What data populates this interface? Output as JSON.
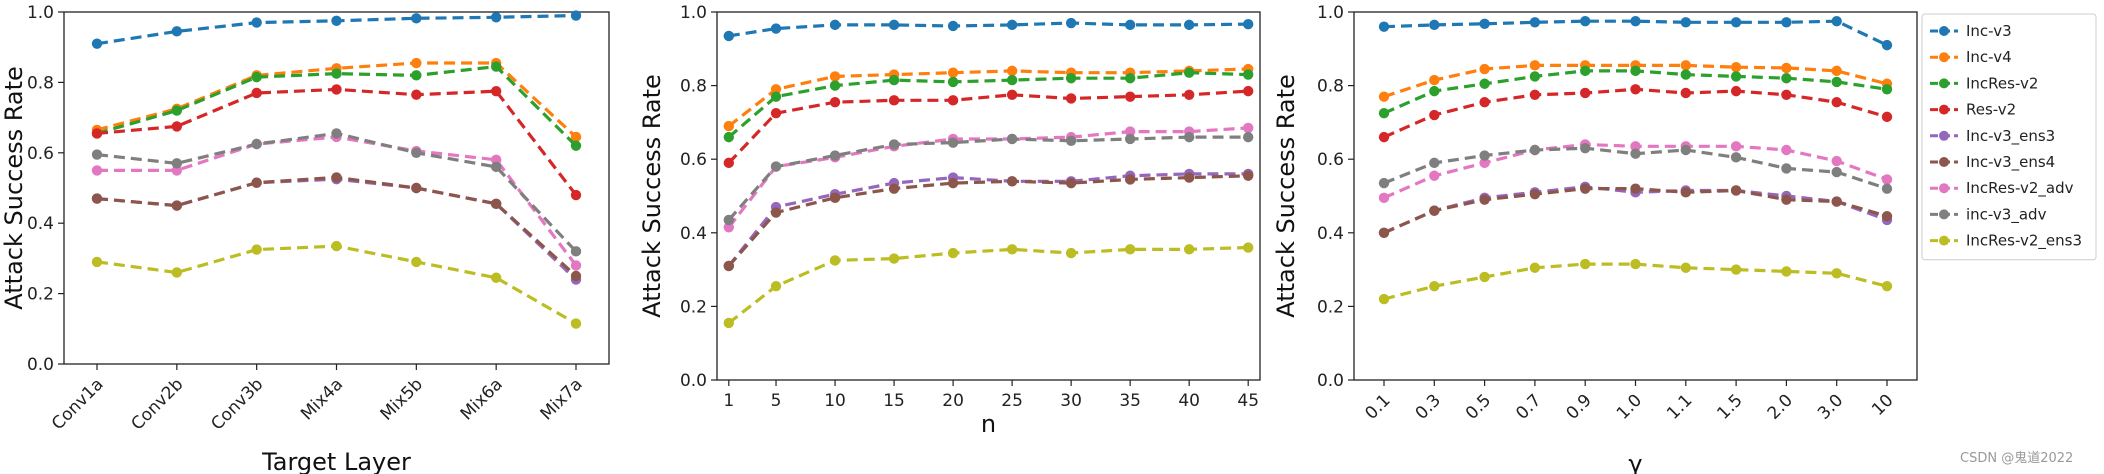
{
  "colors": {
    "Inc-v3": "#1f77b4",
    "Inc-v4": "#ff7f0e",
    "IncRes-v2": "#2ca02c",
    "Res-v2": "#d62728",
    "Inc-v3_ens3": "#9467bd",
    "Inc-v3_ens4": "#8c564b",
    "IncRes-v2_adv": "#e377c2",
    "inc-v3_adv": "#7f7f7f",
    "IncRes-v2_ens3": "#bcbd22"
  },
  "legend": {
    "position": "right",
    "entries": [
      "Inc-v3",
      "Inc-v4",
      "IncRes-v2",
      "Res-v2",
      "Inc-v3_ens3",
      "Inc-v3_ens4",
      "IncRes-v2_adv",
      "inc-v3_adv",
      "IncRes-v2_ens3"
    ]
  },
  "watermark": "CSDN @鬼道2022",
  "chart_data": [
    {
      "type": "line",
      "xlabel": "Target Layer",
      "ylabel": "Attack Success Rate",
      "categories": [
        "Conv1a",
        "Conv2b",
        "Conv3b",
        "Mix4a",
        "Mix5b",
        "Mix6a",
        "Mix7a"
      ],
      "ylim": [
        0.0,
        1.0
      ],
      "yticks": [
        0.0,
        0.2,
        0.4,
        0.6,
        0.8,
        1.0
      ],
      "ytick_labels": [
        "0.0",
        "0.2",
        "0.4",
        "0.6",
        "0.8",
        "1.0"
      ],
      "series": [
        {
          "name": "Inc-v3",
          "values": [
            0.91,
            0.945,
            0.97,
            0.975,
            0.982,
            0.985,
            0.99
          ]
        },
        {
          "name": "Inc-v4",
          "values": [
            0.665,
            0.725,
            0.82,
            0.84,
            0.855,
            0.855,
            0.645
          ]
        },
        {
          "name": "IncRes-v2",
          "values": [
            0.655,
            0.72,
            0.815,
            0.825,
            0.82,
            0.845,
            0.62
          ]
        },
        {
          "name": "Res-v2",
          "values": [
            0.655,
            0.675,
            0.77,
            0.78,
            0.765,
            0.775,
            0.48
          ]
        },
        {
          "name": "Inc-v3_ens3",
          "values": [
            0.47,
            0.45,
            0.515,
            0.525,
            0.5,
            0.455,
            0.24
          ]
        },
        {
          "name": "Inc-v3_ens4",
          "values": [
            0.47,
            0.45,
            0.515,
            0.53,
            0.5,
            0.455,
            0.25
          ]
        },
        {
          "name": "IncRes-v2_adv",
          "values": [
            0.55,
            0.55,
            0.625,
            0.645,
            0.605,
            0.58,
            0.28
          ]
        },
        {
          "name": "inc-v3_adv",
          "values": [
            0.595,
            0.57,
            0.625,
            0.655,
            0.6,
            0.56,
            0.32
          ]
        },
        {
          "name": "IncRes-v2_ens3",
          "values": [
            0.29,
            0.26,
            0.325,
            0.335,
            0.29,
            0.245,
            0.115
          ]
        }
      ]
    },
    {
      "type": "line",
      "xlabel": "n",
      "ylabel": "Attack Success Rate",
      "categories": [
        "1",
        "5",
        "10",
        "15",
        "20",
        "25",
        "30",
        "35",
        "40",
        "45"
      ],
      "x": [
        1,
        5,
        10,
        15,
        20,
        25,
        30,
        35,
        40,
        45
      ],
      "xlim": [
        0,
        46
      ],
      "ylim": [
        0.0,
        1.0
      ],
      "yticks": [
        0.0,
        0.2,
        0.4,
        0.6,
        0.8,
        1.0
      ],
      "ytick_labels": [
        "0.0",
        "0.2",
        "0.4",
        "0.6",
        "0.8",
        "1.0"
      ],
      "series": [
        {
          "name": "Inc-v3",
          "values": [
            0.935,
            0.955,
            0.965,
            0.965,
            0.962,
            0.965,
            0.97,
            0.965,
            0.965,
            0.967
          ]
        },
        {
          "name": "Inc-v4",
          "values": [
            0.69,
            0.79,
            0.825,
            0.83,
            0.835,
            0.84,
            0.835,
            0.835,
            0.84,
            0.845
          ]
        },
        {
          "name": "IncRes-v2",
          "values": [
            0.66,
            0.77,
            0.8,
            0.815,
            0.81,
            0.815,
            0.82,
            0.82,
            0.835,
            0.83
          ]
        },
        {
          "name": "Res-v2",
          "values": [
            0.59,
            0.725,
            0.755,
            0.76,
            0.76,
            0.775,
            0.765,
            0.77,
            0.775,
            0.785
          ]
        },
        {
          "name": "Inc-v3_ens3",
          "values": [
            0.31,
            0.47,
            0.505,
            0.535,
            0.55,
            0.54,
            0.54,
            0.555,
            0.56,
            0.56
          ]
        },
        {
          "name": "Inc-v3_ens4",
          "values": [
            0.31,
            0.455,
            0.495,
            0.52,
            0.535,
            0.54,
            0.535,
            0.545,
            0.55,
            0.555
          ]
        },
        {
          "name": "IncRes-v2_adv",
          "values": [
            0.415,
            0.58,
            0.605,
            0.635,
            0.655,
            0.655,
            0.66,
            0.675,
            0.675,
            0.685
          ]
        },
        {
          "name": "inc-v3_adv",
          "values": [
            0.435,
            0.58,
            0.61,
            0.64,
            0.645,
            0.655,
            0.65,
            0.655,
            0.66,
            0.66
          ]
        },
        {
          "name": "IncRes-v2_ens3",
          "values": [
            0.155,
            0.255,
            0.325,
            0.33,
            0.345,
            0.355,
            0.345,
            0.355,
            0.355,
            0.36
          ]
        }
      ]
    },
    {
      "type": "line",
      "xlabel": "γ",
      "ylabel": "Attack Success Rate",
      "categories": [
        "0.1",
        "0.3",
        "0.5",
        "0.7",
        "0.9",
        "1.0",
        "1.1",
        "1.5",
        "2.0",
        "3.0",
        "10"
      ],
      "ylim": [
        0.0,
        1.0
      ],
      "yticks": [
        0.0,
        0.2,
        0.4,
        0.6,
        0.8,
        1.0
      ],
      "ytick_labels": [
        "0.0",
        "0.2",
        "0.4",
        "0.6",
        "0.8",
        "1.0"
      ],
      "series": [
        {
          "name": "Inc-v3",
          "values": [
            0.96,
            0.965,
            0.968,
            0.972,
            0.975,
            0.975,
            0.972,
            0.972,
            0.972,
            0.975,
            0.91
          ]
        },
        {
          "name": "Inc-v4",
          "values": [
            0.77,
            0.815,
            0.845,
            0.855,
            0.855,
            0.855,
            0.855,
            0.85,
            0.848,
            0.84,
            0.805
          ]
        },
        {
          "name": "IncRes-v2",
          "values": [
            0.725,
            0.785,
            0.805,
            0.825,
            0.84,
            0.84,
            0.83,
            0.825,
            0.82,
            0.81,
            0.79
          ]
        },
        {
          "name": "Res-v2",
          "values": [
            0.66,
            0.72,
            0.755,
            0.775,
            0.78,
            0.79,
            0.78,
            0.785,
            0.775,
            0.755,
            0.715
          ]
        },
        {
          "name": "Inc-v3_ens3",
          "values": [
            0.4,
            0.46,
            0.495,
            0.51,
            0.525,
            0.51,
            0.515,
            0.515,
            0.5,
            0.485,
            0.435
          ]
        },
        {
          "name": "Inc-v3_ens4",
          "values": [
            0.4,
            0.46,
            0.49,
            0.505,
            0.52,
            0.52,
            0.51,
            0.515,
            0.49,
            0.485,
            0.445
          ]
        },
        {
          "name": "IncRes-v2_adv",
          "values": [
            0.495,
            0.555,
            0.59,
            0.625,
            0.64,
            0.635,
            0.635,
            0.635,
            0.625,
            0.595,
            0.545
          ]
        },
        {
          "name": "inc-v3_adv",
          "values": [
            0.535,
            0.59,
            0.61,
            0.625,
            0.63,
            0.615,
            0.625,
            0.605,
            0.575,
            0.565,
            0.52
          ]
        },
        {
          "name": "IncRes-v2_ens3",
          "values": [
            0.22,
            0.255,
            0.28,
            0.305,
            0.315,
            0.315,
            0.305,
            0.3,
            0.295,
            0.29,
            0.255
          ]
        }
      ]
    }
  ]
}
